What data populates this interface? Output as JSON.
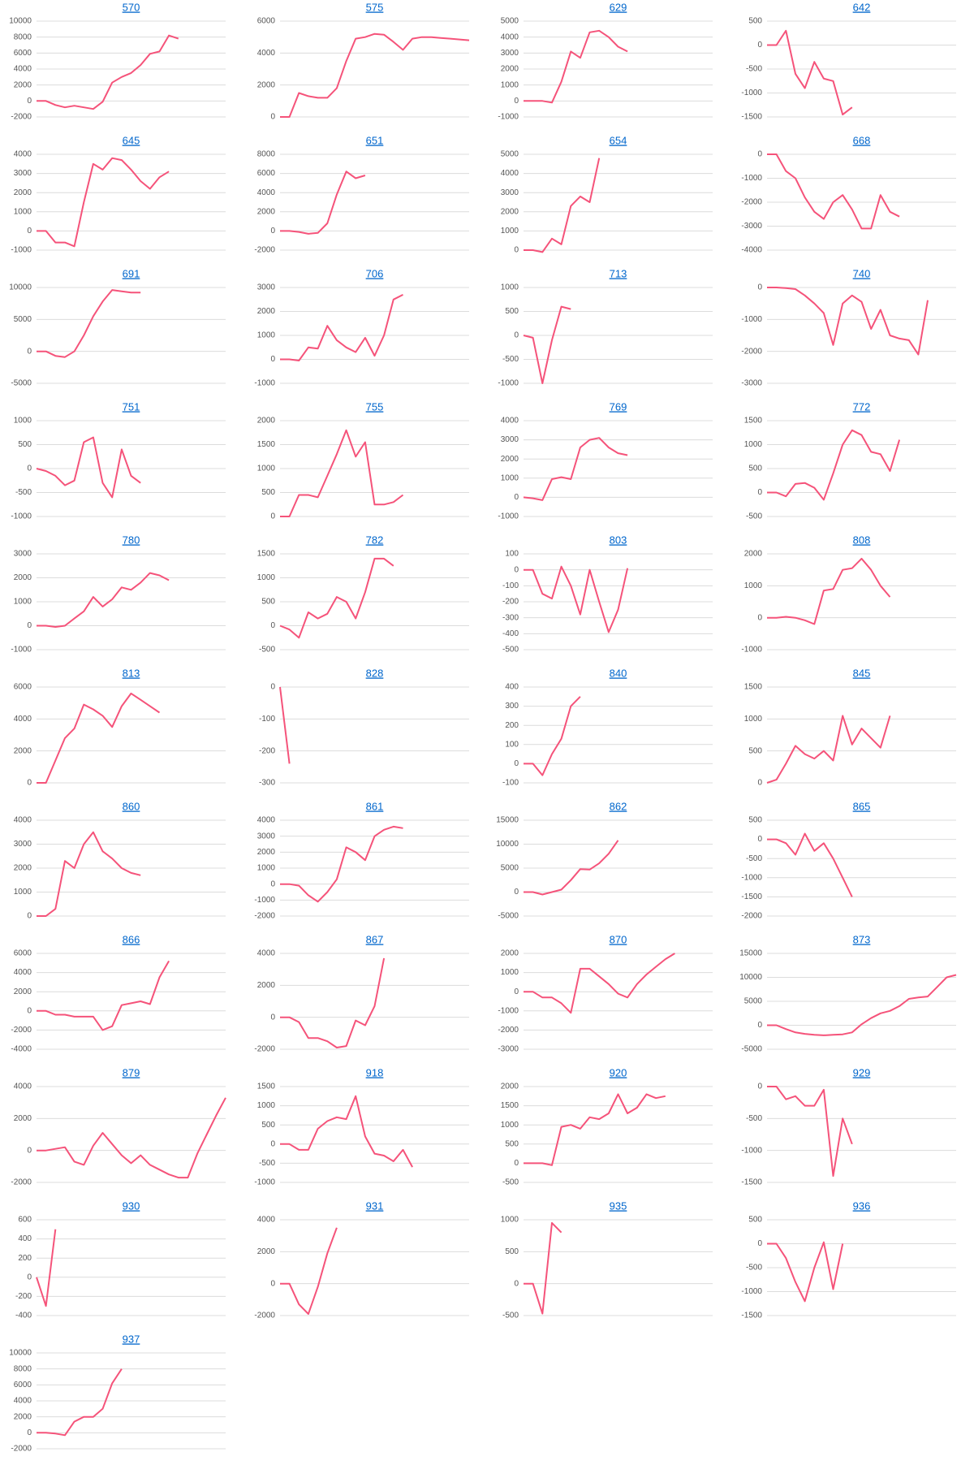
{
  "chart_data": [
    {
      "type": "line",
      "title": "570",
      "color": "#f5537a",
      "ylim": [
        -2000,
        10000
      ],
      "yticks": [
        -2000,
        0,
        2000,
        4000,
        6000,
        8000,
        10000
      ],
      "grid": true,
      "values": [
        0,
        0,
        -500,
        -800,
        -600,
        -800,
        -1000,
        -100,
        2300,
        3000,
        3500,
        4500,
        5900,
        6200,
        8200,
        7800
      ]
    },
    {
      "type": "line",
      "title": "575",
      "color": "#f5537a",
      "ylim": [
        0,
        6000
      ],
      "yticks": [
        0,
        2000,
        4000,
        6000
      ],
      "grid": true,
      "values": [
        0,
        0,
        1500,
        1300,
        1200,
        1200,
        1800,
        3500,
        4900,
        5000,
        5200,
        5150,
        4700,
        4200,
        4900,
        5000,
        5000,
        4950,
        4900,
        4850,
        4800
      ]
    },
    {
      "type": "line",
      "title": "629",
      "color": "#f5537a",
      "ylim": [
        -1000,
        5000
      ],
      "yticks": [
        -1000,
        0,
        1000,
        2000,
        3000,
        4000,
        5000
      ],
      "grid": true,
      "values": [
        0,
        0,
        0,
        -100,
        1200,
        3100,
        2700,
        4300,
        4400,
        4000,
        3400,
        3100
      ]
    },
    {
      "type": "line",
      "title": "642",
      "color": "#f5537a",
      "ylim": [
        -1500,
        500
      ],
      "yticks": [
        -1500,
        -1000,
        -500,
        0,
        500
      ],
      "grid": true,
      "values": [
        0,
        0,
        300,
        -600,
        -900,
        -350,
        -700,
        -750,
        -1450,
        -1300
      ]
    },
    {
      "type": "line",
      "title": "645",
      "color": "#f5537a",
      "ylim": [
        -1000,
        4000
      ],
      "yticks": [
        -1000,
        0,
        1000,
        2000,
        3000,
        4000
      ],
      "grid": true,
      "values": [
        0,
        0,
        -600,
        -600,
        -800,
        1500,
        3500,
        3200,
        3800,
        3700,
        3200,
        2600,
        2200,
        2800,
        3100
      ]
    },
    {
      "type": "line",
      "title": "651",
      "color": "#f5537a",
      "ylim": [
        -2000,
        8000
      ],
      "yticks": [
        -2000,
        0,
        2000,
        4000,
        6000,
        8000
      ],
      "grid": true,
      "values": [
        0,
        0,
        -100,
        -300,
        -200,
        800,
        3800,
        6200,
        5500,
        5800
      ]
    },
    {
      "type": "line",
      "title": "654",
      "color": "#f5537a",
      "ylim": [
        0,
        5000
      ],
      "yticks": [
        0,
        1000,
        2000,
        3000,
        4000,
        5000
      ],
      "grid": true,
      "values": [
        0,
        0,
        -100,
        600,
        300,
        2300,
        2800,
        2500,
        4800
      ]
    },
    {
      "type": "line",
      "title": "668",
      "color": "#f5537a",
      "ylim": [
        -4000,
        0
      ],
      "yticks": [
        -4000,
        -3000,
        -2000,
        -1000,
        0
      ],
      "grid": true,
      "values": [
        0,
        0,
        -700,
        -1000,
        -1800,
        -2400,
        -2700,
        -2000,
        -1700,
        -2300,
        -3100,
        -3100,
        -1700,
        -2400,
        -2600
      ]
    },
    {
      "type": "line",
      "title": "691",
      "color": "#f5537a",
      "ylim": [
        -5000,
        10000
      ],
      "yticks": [
        -5000,
        0,
        5000,
        10000
      ],
      "grid": true,
      "values": [
        0,
        0,
        -700,
        -900,
        0,
        2500,
        5500,
        7800,
        9600,
        9400,
        9200,
        9200
      ]
    },
    {
      "type": "line",
      "title": "706",
      "color": "#f5537a",
      "ylim": [
        -1000,
        3000
      ],
      "yticks": [
        -1000,
        0,
        1000,
        2000,
        3000
      ],
      "grid": true,
      "values": [
        0,
        0,
        -50,
        500,
        450,
        1400,
        800,
        500,
        300,
        900,
        150,
        1000,
        2500,
        2700
      ]
    },
    {
      "type": "line",
      "title": "713",
      "color": "#f5537a",
      "ylim": [
        -1000,
        1000
      ],
      "yticks": [
        -1000,
        -500,
        0,
        500,
        1000
      ],
      "grid": true,
      "values": [
        0,
        -50,
        -1000,
        -100,
        600,
        550
      ]
    },
    {
      "type": "line",
      "title": "740",
      "color": "#f5537a",
      "ylim": [
        -3000,
        0
      ],
      "yticks": [
        -3000,
        -2000,
        -1000,
        0
      ],
      "grid": true,
      "values": [
        0,
        0,
        -20,
        -50,
        -250,
        -500,
        -800,
        -1800,
        -500,
        -250,
        -450,
        -1300,
        -700,
        -1500,
        -1600,
        -1650,
        -2100,
        -400
      ]
    },
    {
      "type": "line",
      "title": "751",
      "color": "#f5537a",
      "ylim": [
        -1000,
        1000
      ],
      "yticks": [
        -1000,
        -500,
        0,
        500,
        1000
      ],
      "grid": true,
      "values": [
        0,
        -50,
        -150,
        -350,
        -250,
        550,
        650,
        -300,
        -600,
        400,
        -150,
        -300
      ]
    },
    {
      "type": "line",
      "title": "755",
      "color": "#f5537a",
      "ylim": [
        0,
        2000
      ],
      "yticks": [
        0,
        500,
        1000,
        1500,
        2000
      ],
      "grid": true,
      "values": [
        0,
        0,
        450,
        450,
        400,
        850,
        1300,
        1800,
        1250,
        1550,
        250,
        250,
        300,
        450
      ]
    },
    {
      "type": "line",
      "title": "769",
      "color": "#f5537a",
      "ylim": [
        -1000,
        4000
      ],
      "yticks": [
        -1000,
        0,
        1000,
        2000,
        3000,
        4000
      ],
      "grid": true,
      "values": [
        0,
        -50,
        -150,
        950,
        1050,
        950,
        2600,
        3000,
        3100,
        2600,
        2300,
        2200
      ]
    },
    {
      "type": "line",
      "title": "772",
      "color": "#f5537a",
      "ylim": [
        -500,
        1500
      ],
      "yticks": [
        -500,
        0,
        500,
        1000,
        1500
      ],
      "grid": true,
      "values": [
        0,
        0,
        -80,
        180,
        200,
        100,
        -150,
        400,
        1000,
        1300,
        1200,
        850,
        800,
        450,
        1100
      ]
    },
    {
      "type": "line",
      "title": "780",
      "color": "#f5537a",
      "ylim": [
        -1000,
        3000
      ],
      "yticks": [
        -1000,
        0,
        1000,
        2000,
        3000
      ],
      "grid": true,
      "values": [
        0,
        0,
        -50,
        0,
        300,
        600,
        1200,
        800,
        1100,
        1600,
        1500,
        1800,
        2200,
        2100,
        1900
      ]
    },
    {
      "type": "line",
      "title": "782",
      "color": "#f5537a",
      "ylim": [
        -500,
        1500
      ],
      "yticks": [
        -500,
        0,
        500,
        1000,
        1500
      ],
      "grid": true,
      "values": [
        0,
        -80,
        -250,
        280,
        150,
        250,
        600,
        500,
        150,
        700,
        1400,
        1400,
        1250
      ]
    },
    {
      "type": "line",
      "title": "803",
      "color": "#f5537a",
      "ylim": [
        -500,
        100
      ],
      "yticks": [
        -500,
        -400,
        -300,
        -200,
        -100,
        0,
        100
      ],
      "grid": true,
      "values": [
        0,
        0,
        -150,
        -180,
        20,
        -100,
        -280,
        0,
        -200,
        -390,
        -250,
        10
      ]
    },
    {
      "type": "line",
      "title": "808",
      "color": "#f5537a",
      "ylim": [
        -1000,
        2000
      ],
      "yticks": [
        -1000,
        0,
        1000,
        2000
      ],
      "grid": true,
      "values": [
        0,
        0,
        30,
        0,
        -80,
        -200,
        850,
        900,
        1500,
        1550,
        1850,
        1500,
        1000,
        650
      ]
    },
    {
      "type": "line",
      "title": "813",
      "color": "#f5537a",
      "ylim": [
        0,
        6000
      ],
      "yticks": [
        0,
        2000,
        4000,
        6000
      ],
      "grid": true,
      "values": [
        0,
        0,
        1400,
        2800,
        3400,
        4900,
        4600,
        4200,
        3500,
        4800,
        5600,
        5200,
        4800,
        4400
      ]
    },
    {
      "type": "line",
      "title": "828",
      "color": "#f5537a",
      "ylim": [
        -300,
        0
      ],
      "yticks": [
        -300,
        -200,
        -100,
        0
      ],
      "grid": true,
      "values": [
        0,
        -240
      ]
    },
    {
      "type": "line",
      "title": "840",
      "color": "#f5537a",
      "ylim": [
        -100,
        400
      ],
      "yticks": [
        -100,
        0,
        100,
        200,
        300,
        400
      ],
      "grid": true,
      "values": [
        0,
        0,
        -60,
        50,
        130,
        300,
        350
      ]
    },
    {
      "type": "line",
      "title": "845",
      "color": "#f5537a",
      "ylim": [
        0,
        1500
      ],
      "yticks": [
        0,
        500,
        1000,
        1500
      ],
      "grid": true,
      "values": [
        0,
        50,
        300,
        580,
        450,
        380,
        500,
        350,
        1050,
        600,
        850,
        700,
        550,
        1050
      ]
    },
    {
      "type": "line",
      "title": "860",
      "color": "#f5537a",
      "ylim": [
        0,
        4000
      ],
      "yticks": [
        0,
        1000,
        2000,
        3000,
        4000
      ],
      "grid": true,
      "values": [
        0,
        0,
        300,
        2300,
        2000,
        3000,
        3500,
        2700,
        2400,
        2000,
        1800,
        1700
      ]
    },
    {
      "type": "line",
      "title": "861",
      "color": "#f5537a",
      "ylim": [
        -2000,
        4000
      ],
      "yticks": [
        -2000,
        -1000,
        0,
        1000,
        2000,
        3000,
        4000
      ],
      "grid": true,
      "values": [
        0,
        0,
        -100,
        -700,
        -1100,
        -500,
        300,
        2300,
        2000,
        1500,
        3000,
        3400,
        3600,
        3500
      ]
    },
    {
      "type": "line",
      "title": "862",
      "color": "#f5537a",
      "ylim": [
        -5000,
        15000
      ],
      "yticks": [
        -5000,
        0,
        5000,
        10000,
        15000
      ],
      "grid": true,
      "values": [
        0,
        0,
        -500,
        0,
        500,
        2500,
        4800,
        4700,
        6000,
        8000,
        10800
      ]
    },
    {
      "type": "line",
      "title": "865",
      "color": "#f5537a",
      "ylim": [
        -2000,
        500
      ],
      "yticks": [
        -2000,
        -1500,
        -1000,
        -500,
        0,
        500
      ],
      "grid": true,
      "values": [
        0,
        0,
        -100,
        -400,
        150,
        -300,
        -100,
        -500,
        -1000,
        -1500
      ]
    },
    {
      "type": "line",
      "title": "866",
      "color": "#f5537a",
      "ylim": [
        -4000,
        6000
      ],
      "yticks": [
        -4000,
        -2000,
        0,
        2000,
        4000,
        6000
      ],
      "grid": true,
      "values": [
        0,
        0,
        -400,
        -400,
        -600,
        -600,
        -600,
        -2000,
        -1600,
        600,
        800,
        1000,
        700,
        3500,
        5200
      ]
    },
    {
      "type": "line",
      "title": "867",
      "color": "#f5537a",
      "ylim": [
        -2000,
        4000
      ],
      "yticks": [
        -2000,
        0,
        2000,
        4000
      ],
      "grid": true,
      "values": [
        0,
        0,
        -300,
        -1300,
        -1300,
        -1500,
        -1900,
        -1800,
        -200,
        -500,
        700,
        3700
      ]
    },
    {
      "type": "line",
      "title": "870",
      "color": "#f5537a",
      "ylim": [
        -3000,
        2000
      ],
      "yticks": [
        -3000,
        -2000,
        -1000,
        0,
        1000,
        2000
      ],
      "grid": true,
      "values": [
        0,
        0,
        -300,
        -300,
        -600,
        -1100,
        1200,
        1200,
        800,
        400,
        -100,
        -300,
        400,
        900,
        1300,
        1700,
        2000
      ]
    },
    {
      "type": "line",
      "title": "873",
      "color": "#f5537a",
      "ylim": [
        -5000,
        15000
      ],
      "yticks": [
        -5000,
        0,
        5000,
        10000,
        15000
      ],
      "grid": true,
      "values": [
        0,
        0,
        -800,
        -1500,
        -1800,
        -2000,
        -2100,
        -2000,
        -1900,
        -1500,
        200,
        1500,
        2500,
        3000,
        4000,
        5500,
        5800,
        6000,
        8000,
        10000,
        10500
      ]
    },
    {
      "type": "line",
      "title": "879",
      "color": "#f5537a",
      "ylim": [
        -2000,
        4000
      ],
      "yticks": [
        -2000,
        0,
        2000,
        4000
      ],
      "grid": true,
      "values": [
        0,
        0,
        100,
        200,
        -700,
        -900,
        300,
        1100,
        400,
        -300,
        -800,
        -300,
        -900,
        -1200,
        -1500,
        -1700,
        -1700,
        -200,
        1000,
        2200,
        3300
      ]
    },
    {
      "type": "line",
      "title": "918",
      "color": "#f5537a",
      "ylim": [
        -1000,
        1500
      ],
      "yticks": [
        -1000,
        -500,
        0,
        500,
        1000,
        1500
      ],
      "grid": true,
      "values": [
        0,
        0,
        -150,
        -150,
        400,
        600,
        700,
        650,
        1250,
        200,
        -250,
        -300,
        -450,
        -150,
        -600
      ]
    },
    {
      "type": "line",
      "title": "920",
      "color": "#f5537a",
      "ylim": [
        -500,
        2000
      ],
      "yticks": [
        -500,
        0,
        500,
        1000,
        1500,
        2000
      ],
      "grid": true,
      "values": [
        0,
        0,
        0,
        -50,
        950,
        1000,
        900,
        1200,
        1150,
        1300,
        1800,
        1300,
        1450,
        1800,
        1700,
        1750
      ]
    },
    {
      "type": "line",
      "title": "929",
      "color": "#f5537a",
      "ylim": [
        -1500,
        0
      ],
      "yticks": [
        -1500,
        -1000,
        -500,
        0
      ],
      "grid": true,
      "values": [
        0,
        0,
        -200,
        -150,
        -300,
        -300,
        -50,
        -1400,
        -500,
        -900
      ]
    },
    {
      "type": "line",
      "title": "930",
      "color": "#f5537a",
      "ylim": [
        -400,
        600
      ],
      "yticks": [
        -400,
        -200,
        0,
        200,
        400,
        600
      ],
      "grid": true,
      "values": [
        0,
        -300,
        500
      ]
    },
    {
      "type": "line",
      "title": "931",
      "color": "#f5537a",
      "ylim": [
        -2000,
        4000
      ],
      "yticks": [
        -2000,
        0,
        2000,
        4000
      ],
      "grid": true,
      "values": [
        0,
        0,
        -1300,
        -1900,
        -200,
        1900,
        3500
      ]
    },
    {
      "type": "line",
      "title": "935",
      "color": "#f5537a",
      "ylim": [
        -500,
        1000
      ],
      "yticks": [
        -500,
        0,
        500,
        1000
      ],
      "grid": true,
      "values": [
        0,
        0,
        -470,
        950,
        800
      ]
    },
    {
      "type": "line",
      "title": "936",
      "color": "#f5537a",
      "ylim": [
        -1500,
        500
      ],
      "yticks": [
        -1500,
        -1000,
        -500,
        0,
        500
      ],
      "grid": true,
      "values": [
        0,
        0,
        -300,
        -800,
        -1200,
        -500,
        30,
        -950,
        0
      ]
    },
    {
      "type": "line",
      "title": "937",
      "color": "#f5537a",
      "ylim": [
        -2000,
        10000
      ],
      "yticks": [
        -2000,
        0,
        2000,
        4000,
        6000,
        8000,
        10000
      ],
      "grid": true,
      "values": [
        0,
        0,
        -100,
        -300,
        1400,
        2000,
        2000,
        3000,
        6200,
        8000
      ]
    }
  ]
}
